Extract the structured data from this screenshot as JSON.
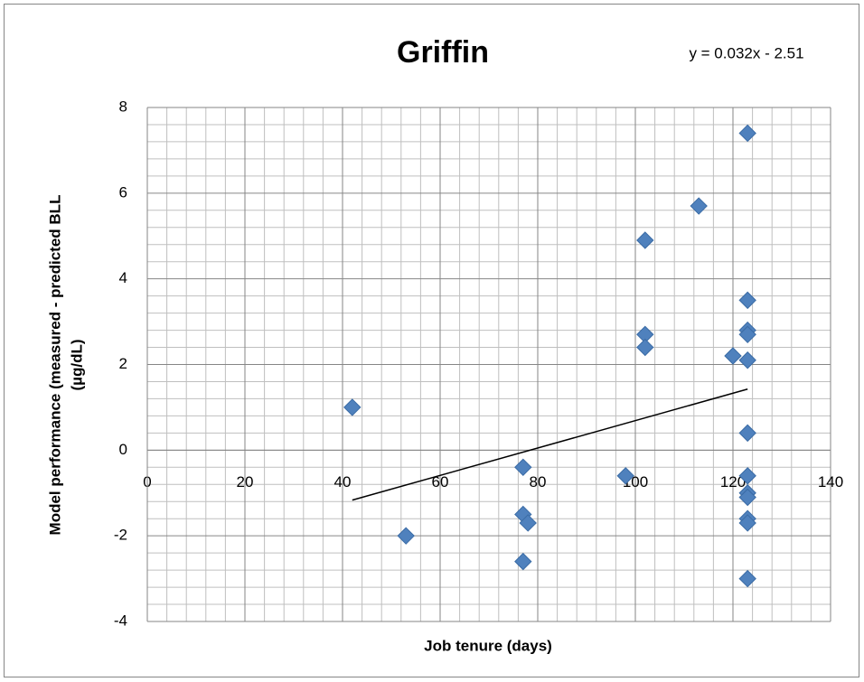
{
  "chart_data": {
    "type": "scatter",
    "title": "Griffin",
    "annotation": "y = 0.032x - 2.51",
    "xlabel": "Job tenure (days)",
    "ylabel": [
      "Model performance (measured - predicted BLL",
      "(µg/dL)"
    ],
    "series": [
      {
        "name": "Griffin",
        "color": "#4f81bd",
        "x": [
          42,
          53,
          77,
          77,
          78,
          77,
          98,
          102,
          102,
          102,
          113,
          120,
          123,
          123,
          123,
          123,
          123,
          123,
          123,
          123,
          123,
          123,
          123,
          123
        ],
        "values": [
          1.0,
          -2.0,
          -0.4,
          -1.5,
          -1.7,
          -2.6,
          -0.6,
          4.9,
          2.7,
          2.4,
          5.7,
          2.2,
          7.4,
          3.5,
          2.8,
          2.7,
          2.1,
          0.4,
          -0.6,
          -1.0,
          -1.1,
          -1.6,
          -1.7,
          -3.0
        ]
      }
    ],
    "trendline": {
      "color": "#000000",
      "x": [
        42,
        123
      ],
      "values": [
        -1.166,
        1.426
      ]
    },
    "xlim": [
      0,
      140
    ],
    "xticks": [
      0,
      20,
      40,
      60,
      80,
      100,
      120,
      140
    ],
    "ylim": [
      -4,
      8
    ],
    "yticks": [
      -4,
      -2,
      0,
      2,
      4,
      6,
      8
    ],
    "grid": true,
    "minor_grid": true
  }
}
